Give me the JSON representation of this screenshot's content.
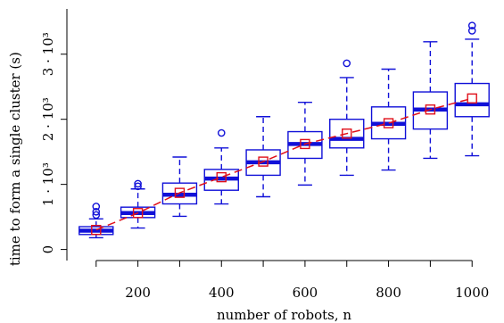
{
  "chart_data": {
    "type": "box",
    "xlabel": "number of robots, n",
    "ylabel": "time to form a single cluster (s)",
    "x_ticks": [
      {
        "value": 100,
        "label": ""
      },
      {
        "value": 200,
        "label": "200"
      },
      {
        "value": 300,
        "label": ""
      },
      {
        "value": 400,
        "label": "400"
      },
      {
        "value": 500,
        "label": ""
      },
      {
        "value": 600,
        "label": "600"
      },
      {
        "value": 700,
        "label": ""
      },
      {
        "value": 800,
        "label": "800"
      },
      {
        "value": 900,
        "label": ""
      },
      {
        "value": 1000,
        "label": "1000"
      }
    ],
    "y_ticks": [
      {
        "value": 0,
        "label": "0"
      },
      {
        "value": 1000,
        "label": "1 · 10³"
      },
      {
        "value": 2000,
        "label": "2 · 10³"
      },
      {
        "value": 3000,
        "label": "3 · 10³"
      }
    ],
    "xlim": [
      30,
      1070
    ],
    "ylim": [
      -170,
      3750
    ],
    "box_color": "#1010d8",
    "mean_color": "#e0101a",
    "boxes": [
      {
        "x": 100,
        "whisker_low": 180,
        "q1": 230,
        "median": 290,
        "q3": 350,
        "whisker_high": 470,
        "outliers": [
          530,
          580,
          660
        ]
      },
      {
        "x": 200,
        "whisker_low": 330,
        "q1": 490,
        "median": 560,
        "q3": 650,
        "whisker_high": 930,
        "outliers": [
          970,
          1010
        ]
      },
      {
        "x": 300,
        "whisker_low": 510,
        "q1": 700,
        "median": 840,
        "q3": 1020,
        "whisker_high": 1420,
        "outliers": []
      },
      {
        "x": 400,
        "whisker_low": 700,
        "q1": 910,
        "median": 1090,
        "q3": 1230,
        "whisker_high": 1560,
        "outliers": [
          1790
        ]
      },
      {
        "x": 500,
        "whisker_low": 810,
        "q1": 1140,
        "median": 1340,
        "q3": 1530,
        "whisker_high": 2040,
        "outliers": []
      },
      {
        "x": 600,
        "whisker_low": 990,
        "q1": 1400,
        "median": 1620,
        "q3": 1810,
        "whisker_high": 2260,
        "outliers": []
      },
      {
        "x": 700,
        "whisker_low": 1140,
        "q1": 1560,
        "median": 1700,
        "q3": 2000,
        "whisker_high": 2640,
        "outliers": [
          2860
        ]
      },
      {
        "x": 800,
        "whisker_low": 1220,
        "q1": 1700,
        "median": 1930,
        "q3": 2190,
        "whisker_high": 2770,
        "outliers": []
      },
      {
        "x": 900,
        "whisker_low": 1400,
        "q1": 1850,
        "median": 2150,
        "q3": 2420,
        "whisker_high": 3190,
        "outliers": []
      },
      {
        "x": 1000,
        "whisker_low": 1440,
        "q1": 2040,
        "median": 2230,
        "q3": 2550,
        "whisker_high": 3230,
        "outliers": [
          3360,
          3440
        ]
      }
    ],
    "means": [
      {
        "x": 100,
        "y": 300
      },
      {
        "x": 200,
        "y": 560
      },
      {
        "x": 300,
        "y": 870
      },
      {
        "x": 400,
        "y": 1110
      },
      {
        "x": 500,
        "y": 1350
      },
      {
        "x": 600,
        "y": 1620
      },
      {
        "x": 700,
        "y": 1780
      },
      {
        "x": 800,
        "y": 1940
      },
      {
        "x": 900,
        "y": 2150
      },
      {
        "x": 1000,
        "y": 2320
      }
    ]
  }
}
